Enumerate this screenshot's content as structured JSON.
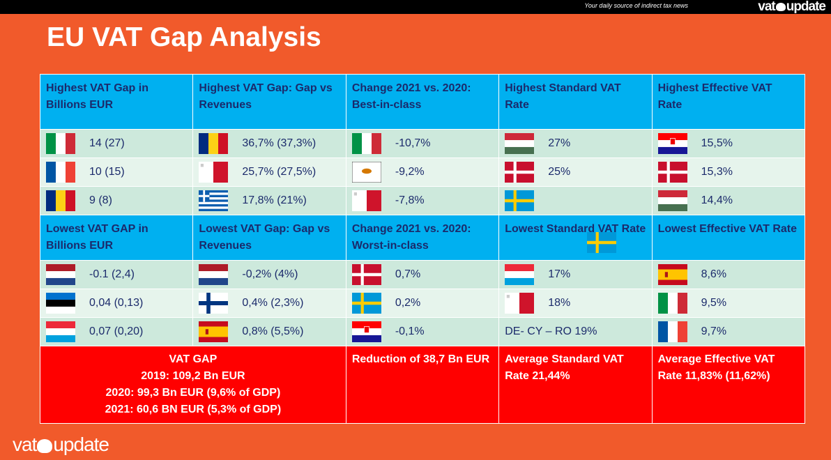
{
  "header": {
    "tagline": "Your daily source of indirect tax news",
    "logo": "vatupdate"
  },
  "title": "EU VAT Gap Analysis",
  "top_headers": [
    "Highest VAT Gap in Billions EUR",
    "Highest VAT Gap: Gap vs Revenues",
    "Change 2021 vs. 2020: Best-in-class",
    "Highest Standard VAT Rate",
    "Highest Effective VAT Rate"
  ],
  "top_rows": [
    [
      {
        "flag": "it",
        "v": "14 (27)"
      },
      {
        "flag": "ro",
        "v": "36,7% (37,3%)"
      },
      {
        "flag": "it",
        "v": "-10,7%"
      },
      {
        "flag": "hu",
        "v": "27%"
      },
      {
        "flag": "hr",
        "v": "15,5%"
      }
    ],
    [
      {
        "flag": "fr",
        "v": "10 (15)"
      },
      {
        "flag": "mt",
        "v": "25,7% (27,5%)"
      },
      {
        "flag": "cy",
        "v": "-9,2%"
      },
      {
        "flag": "dk",
        "v": "25%"
      },
      {
        "flag": "dk",
        "v": "15,3%"
      }
    ],
    [
      {
        "flag": "ro",
        "v": "9 (8)"
      },
      {
        "flag": "gr",
        "v": "17,8% (21%)"
      },
      {
        "flag": "mt",
        "v": "-7,8%"
      },
      {
        "flag": "se",
        "v": ""
      },
      {
        "flag": "hu",
        "v": "14,4%"
      }
    ]
  ],
  "bottom_headers": [
    "Lowest VAT GAP in Billions EUR",
    "Lowest VAT Gap: Gap vs Revenues",
    "Change 2021 vs. 2020: Worst-in-class",
    "Lowest Standard VAT Rate",
    "Lowest Effective VAT Rate"
  ],
  "bottom_rows": [
    [
      {
        "flag": "nl",
        "v": "-0.1 (2,4)"
      },
      {
        "flag": "nl",
        "v": "-0,2% (4%)"
      },
      {
        "flag": "dk",
        "v": "0,7%"
      },
      {
        "flag": "lu",
        "v": "17%"
      },
      {
        "flag": "es",
        "v": "8,6%"
      }
    ],
    [
      {
        "flag": "ee",
        "v": "0,04 (0,13)"
      },
      {
        "flag": "fi",
        "v": "0,4% (2,3%)"
      },
      {
        "flag": "se",
        "v": "0,2%"
      },
      {
        "flag": "mt",
        "v": "18%"
      },
      {
        "flag": "it",
        "v": "9,5%"
      }
    ],
    [
      {
        "flag": "lu",
        "v": "0,07 (0,20)"
      },
      {
        "flag": "es",
        "v": "0,8% (5,5%)"
      },
      {
        "flag": "hr",
        "v": "-0,1%"
      },
      {
        "flag": "",
        "v": "DE- CY – RO 19%"
      },
      {
        "flag": "fr",
        "v": "9,7%"
      }
    ]
  ],
  "footer": {
    "vat_gap": [
      "VAT GAP",
      "2019: 109,2 Bn EUR",
      "2020: 99,3 Bn EUR (9,6% of GDP)",
      "2021: 60,6 BN EUR (5,3% of GDP)"
    ],
    "reduction": "Reduction of 38,7 Bn EUR",
    "avg_standard": "Average Standard VAT Rate 21,44%",
    "avg_effective": "Average Effective VAT Rate 11,83% (11,62%)"
  }
}
